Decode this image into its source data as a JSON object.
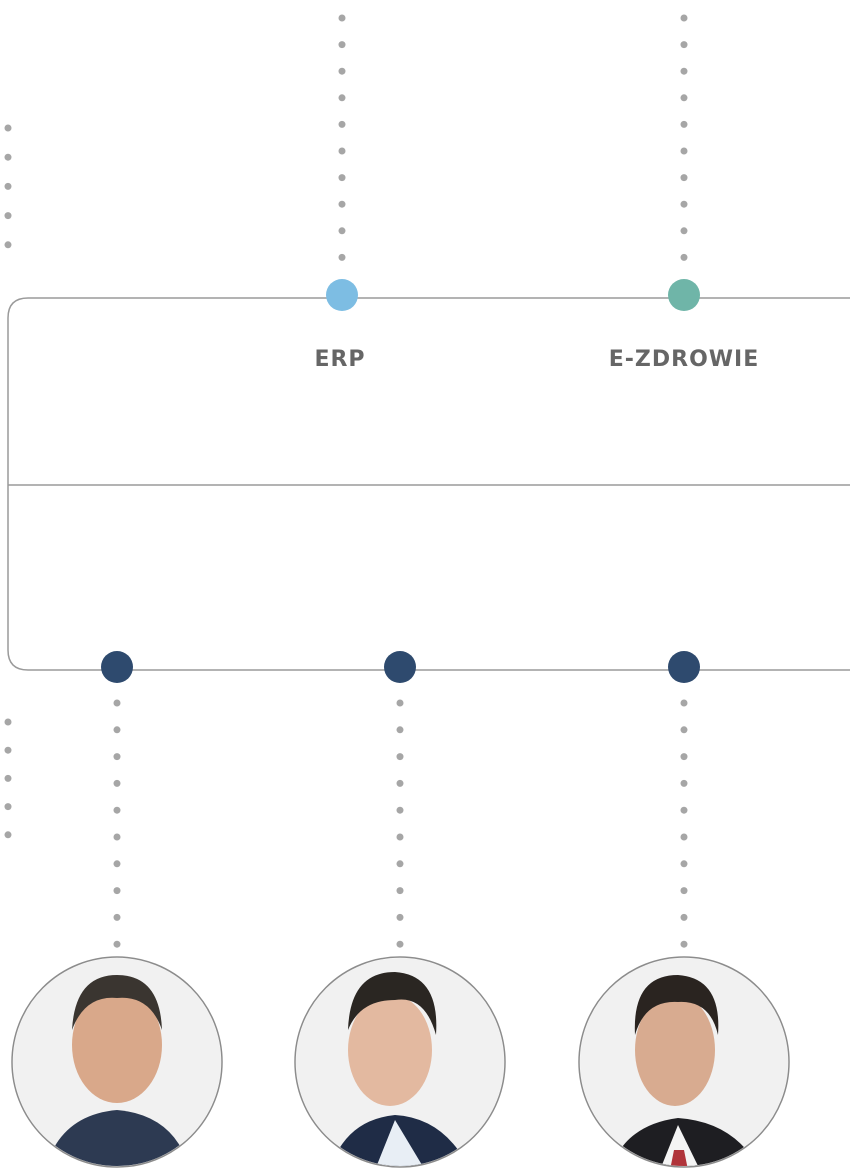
{
  "nodes": [
    {
      "label": "ERP"
    },
    {
      "label": "E-ZDROWIE"
    }
  ]
}
